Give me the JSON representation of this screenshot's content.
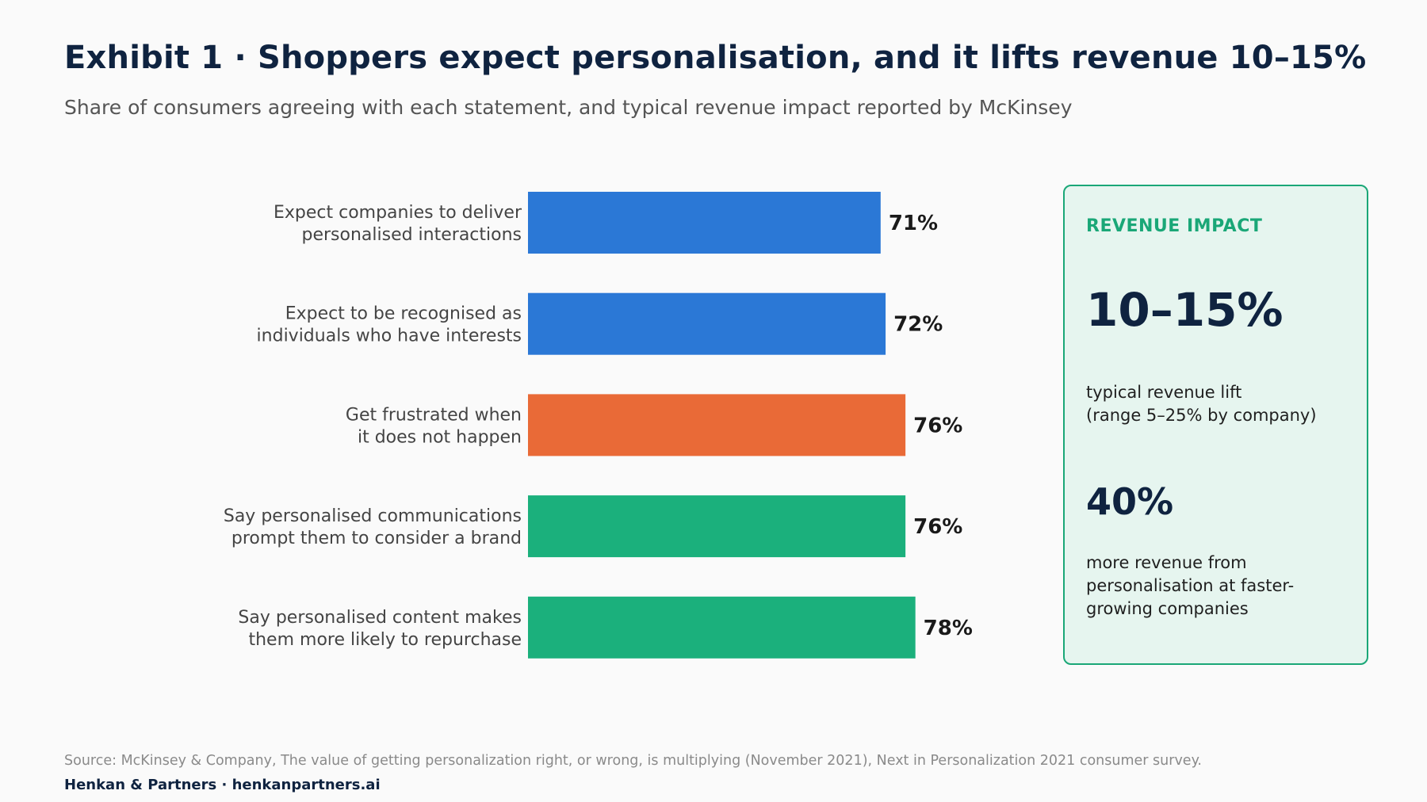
{
  "header": {
    "title": "Exhibit 1 · Shoppers expect personalisation, and it lifts revenue 10–15%",
    "subtitle": "Share of consumers agreeing with each statement, and typical revenue impact reported by McKinsey"
  },
  "chart_data": {
    "type": "bar",
    "orientation": "horizontal",
    "categories": [
      [
        "Expect companies to deliver",
        "personalised interactions"
      ],
      [
        "Expect to be recognised as",
        "individuals who have interests"
      ],
      [
        "Get frustrated when",
        "it does not happen"
      ],
      [
        "Say personalised communications",
        "prompt them to consider a brand"
      ],
      [
        "Say personalised content makes",
        "them more likely to repurchase"
      ]
    ],
    "values": [
      71,
      72,
      76,
      76,
      78
    ],
    "value_labels": [
      "71%",
      "72%",
      "76%",
      "76%",
      "78%"
    ],
    "colors": [
      "#2b78d6",
      "#2b78d6",
      "#e96a37",
      "#1bb07c",
      "#1bb07c"
    ],
    "unit": "%",
    "xlim": [
      0,
      100
    ],
    "grid": false,
    "legend": "none"
  },
  "panel": {
    "heading": "REVENUE IMPACT",
    "stat1_value": "10–15%",
    "stat1_desc_line1": "typical revenue lift",
    "stat1_desc_line2": "(range 5–25% by company)",
    "stat2_value": "40%",
    "stat2_desc_line1": "more revenue from",
    "stat2_desc_line2": "personalisation at faster-",
    "stat2_desc_line3": "growing companies",
    "accent_color": "#1aa777",
    "background_color": "#e6f5ef"
  },
  "footer": {
    "source": "Source: McKinsey & Company, The value of getting personalization right, or wrong, is multiplying (November 2021), Next in Personalization 2021 consumer survey.",
    "brand": "Henkan & Partners · henkanpartners.ai"
  }
}
